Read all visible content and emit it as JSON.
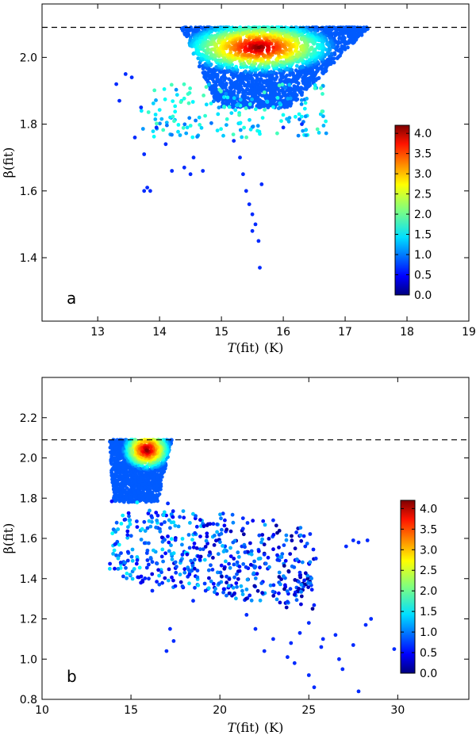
{
  "chart_data": [
    {
      "type": "scatter",
      "panel": "a",
      "xlabel_prefix": "T",
      "xlabel_fn": "(fit)",
      "xlabel_unit": "(K)",
      "ylabel_prefix": "β",
      "ylabel_fn": "(fit)",
      "xlim": [
        12.1,
        19.0
      ],
      "ylim": [
        1.21,
        2.16
      ],
      "xticks": [
        13,
        14,
        15,
        16,
        17,
        18,
        19
      ],
      "yticks": [
        1.4,
        1.6,
        1.8,
        2.0
      ],
      "reference_line_y": 2.09,
      "colorbar": {
        "min": 0.0,
        "max": 4.2,
        "ticks": [
          "0.0",
          "0.5",
          "1.0",
          "1.5",
          "2.0",
          "2.5",
          "3.0",
          "3.5",
          "4.0"
        ]
      },
      "density_core": {
        "x_center": 15.6,
        "y_center": 2.03,
        "x_span": [
          14.2,
          17.4
        ],
        "y_span": [
          1.85,
          2.09
        ],
        "peak_density": 4.2
      },
      "outliers": [
        {
          "x": 13.3,
          "y": 1.92
        },
        {
          "x": 13.35,
          "y": 1.87
        },
        {
          "x": 13.45,
          "y": 1.95
        },
        {
          "x": 13.55,
          "y": 1.94
        },
        {
          "x": 13.7,
          "y": 1.85
        },
        {
          "x": 13.75,
          "y": 1.6
        },
        {
          "x": 13.8,
          "y": 1.61
        },
        {
          "x": 13.85,
          "y": 1.6
        },
        {
          "x": 13.6,
          "y": 1.76
        },
        {
          "x": 13.75,
          "y": 1.71
        },
        {
          "x": 13.95,
          "y": 1.79
        },
        {
          "x": 14.2,
          "y": 1.66
        },
        {
          "x": 14.4,
          "y": 1.67
        },
        {
          "x": 14.5,
          "y": 1.65
        },
        {
          "x": 14.55,
          "y": 1.7
        },
        {
          "x": 14.7,
          "y": 1.66
        },
        {
          "x": 14.1,
          "y": 1.74
        },
        {
          "x": 15.4,
          "y": 1.6
        },
        {
          "x": 15.45,
          "y": 1.56
        },
        {
          "x": 15.5,
          "y": 1.53
        },
        {
          "x": 15.55,
          "y": 1.5
        },
        {
          "x": 15.6,
          "y": 1.45
        },
        {
          "x": 15.62,
          "y": 1.37
        },
        {
          "x": 15.35,
          "y": 1.65
        },
        {
          "x": 15.3,
          "y": 1.7
        },
        {
          "x": 16.0,
          "y": 1.79
        },
        {
          "x": 16.3,
          "y": 1.8
        },
        {
          "x": 15.2,
          "y": 1.75
        },
        {
          "x": 15.65,
          "y": 1.62
        },
        {
          "x": 15.5,
          "y": 1.48
        }
      ]
    },
    {
      "type": "scatter",
      "panel": "b",
      "xlabel_prefix": "T",
      "xlabel_fn": "(fit)",
      "xlabel_unit": "(K)",
      "ylabel_prefix": "β",
      "ylabel_fn": "(fit)",
      "xlim": [
        10.0,
        34.0
      ],
      "ylim": [
        0.8,
        2.4
      ],
      "xticks": [
        10,
        15,
        20,
        25,
        30
      ],
      "yticks": [
        0.8,
        1.0,
        1.2,
        1.4,
        1.6,
        1.8,
        2.0,
        2.2
      ],
      "reference_line_y": 2.09,
      "colorbar": {
        "min": 0.0,
        "max": 4.2,
        "ticks": [
          "0.0",
          "0.5",
          "1.0",
          "1.5",
          "2.0",
          "2.5",
          "3.0",
          "3.5",
          "4.0"
        ]
      },
      "density_core": {
        "x_center": 15.9,
        "y_center": 2.04,
        "x_span": [
          13.8,
          17.3
        ],
        "y_span": [
          1.78,
          2.09
        ],
        "peak_density": 4.2
      },
      "outliers": [
        {
          "x": 17.0,
          "y": 1.04
        },
        {
          "x": 17.2,
          "y": 1.15
        },
        {
          "x": 17.4,
          "y": 1.09
        },
        {
          "x": 21.5,
          "y": 1.22
        },
        {
          "x": 22.0,
          "y": 1.15
        },
        {
          "x": 22.5,
          "y": 1.04
        },
        {
          "x": 23.0,
          "y": 1.1
        },
        {
          "x": 23.8,
          "y": 1.01
        },
        {
          "x": 24.2,
          "y": 0.98
        },
        {
          "x": 24.5,
          "y": 1.13
        },
        {
          "x": 25.0,
          "y": 0.92
        },
        {
          "x": 25.3,
          "y": 0.86
        },
        {
          "x": 25.0,
          "y": 1.18
        },
        {
          "x": 25.8,
          "y": 1.1
        },
        {
          "x": 24.0,
          "y": 1.08
        },
        {
          "x": 26.7,
          "y": 1.0
        },
        {
          "x": 26.9,
          "y": 0.95
        },
        {
          "x": 27.5,
          "y": 1.07
        },
        {
          "x": 27.8,
          "y": 0.84
        },
        {
          "x": 28.2,
          "y": 1.17
        },
        {
          "x": 28.5,
          "y": 1.2
        },
        {
          "x": 29.8,
          "y": 1.05
        },
        {
          "x": 27.5,
          "y": 1.59
        },
        {
          "x": 27.8,
          "y": 1.58
        },
        {
          "x": 28.3,
          "y": 1.59
        },
        {
          "x": 27.1,
          "y": 1.56
        },
        {
          "x": 26.5,
          "y": 1.12
        },
        {
          "x": 25.7,
          "y": 1.06
        },
        {
          "x": 22.5,
          "y": 1.52
        },
        {
          "x": 23.0,
          "y": 1.69
        },
        {
          "x": 24.3,
          "y": 1.63
        },
        {
          "x": 24.8,
          "y": 1.56
        },
        {
          "x": 25.4,
          "y": 1.5
        },
        {
          "x": 24.5,
          "y": 1.43
        },
        {
          "x": 21.3,
          "y": 1.7
        },
        {
          "x": 14.1,
          "y": 1.57
        },
        {
          "x": 16.2,
          "y": 1.34
        },
        {
          "x": 16.0,
          "y": 1.4
        },
        {
          "x": 18.5,
          "y": 1.29
        },
        {
          "x": 19.2,
          "y": 1.34
        }
      ]
    }
  ]
}
